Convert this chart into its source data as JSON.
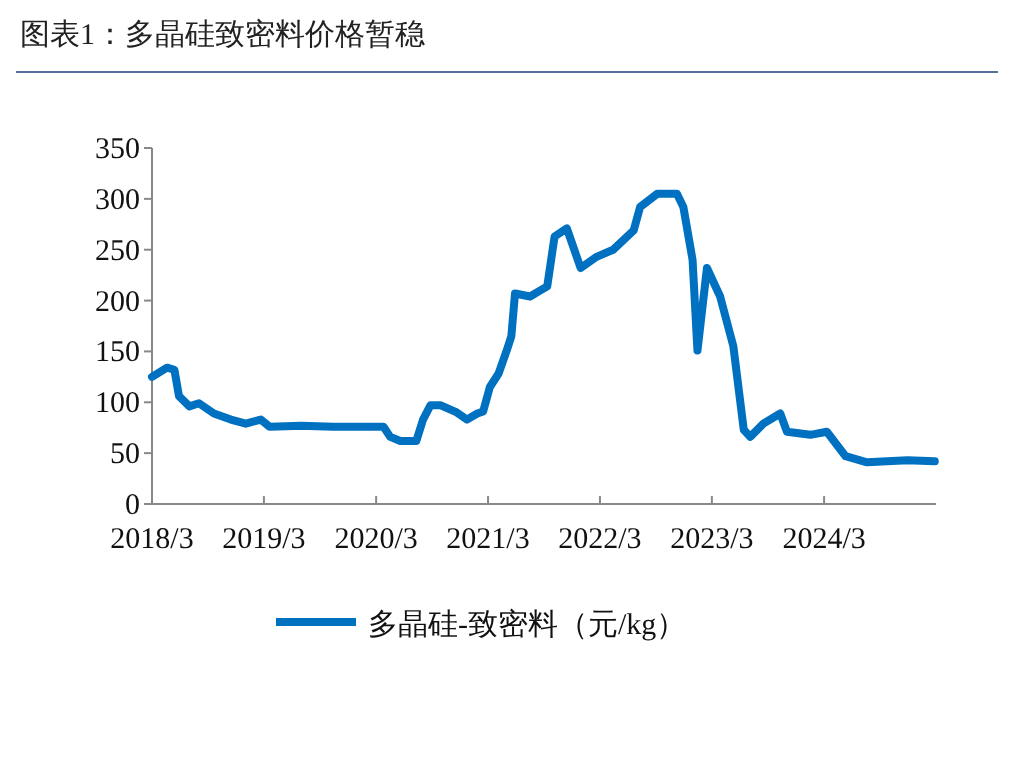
{
  "chart_data": {
    "type": "line",
    "title": "图表1：多晶硅致密料价格暂稳",
    "x": [
      "2018-03-01",
      "2018-04-19",
      "2018-05-13",
      "2018-05-28",
      "2018-07-01",
      "2018-08-01",
      "2018-09-19",
      "2018-11-13",
      "2019-01-01",
      "2019-02-19",
      "2019-03-19",
      "2019-07-01",
      "2019-10-13",
      "2020-03-25",
      "2020-04-16",
      "2020-05-19",
      "2020-07-10",
      "2020-08-01",
      "2020-08-25",
      "2020-09-28",
      "2020-11-19",
      "2020-12-22",
      "2021-01-25",
      "2021-02-13",
      "2021-03-07",
      "2021-04-04",
      "2021-05-01",
      "2021-05-16",
      "2021-05-28",
      "2021-07-16",
      "2021-09-10",
      "2021-10-04",
      "2021-11-13",
      "2021-12-28",
      "2022-02-18",
      "2022-04-13",
      "2022-06-19",
      "2022-07-10",
      "2022-09-04",
      "2022-11-07",
      "2022-11-28",
      "2022-12-28",
      "2023-01-13",
      "2023-02-13",
      "2023-03-28",
      "2023-05-10",
      "2023-06-13",
      "2023-07-04",
      "2023-08-16",
      "2023-10-10",
      "2023-11-01",
      "2024-01-16",
      "2024-03-10",
      "2024-05-10",
      "2024-07-19",
      "2024-11-28",
      "2025-02-25"
    ],
    "series": [
      {
        "name": "多晶硅-致密料（元/kg）",
        "color": "#0070c0",
        "values": [
          125,
          134,
          132,
          106,
          96,
          99,
          89,
          83,
          79,
          83,
          76,
          77,
          76,
          76,
          66,
          62,
          62,
          83,
          97,
          97,
          90,
          83,
          89,
          91,
          115,
          128,
          151,
          165,
          207,
          204,
          214,
          263,
          271,
          232,
          243,
          250,
          269,
          292,
          305,
          305,
          292,
          240,
          151,
          232,
          204,
          155,
          73,
          66,
          79,
          89,
          71,
          68,
          71,
          47,
          41,
          43,
          42
        ]
      }
    ],
    "xlim": [
      "2018-03",
      "2025-03"
    ],
    "xticks": [
      {
        "value": "2018-03",
        "label": "2018/3"
      },
      {
        "value": "2019-03",
        "label": "2019/3"
      },
      {
        "value": "2020-03",
        "label": "2020/3"
      },
      {
        "value": "2021-03",
        "label": "2021/3"
      },
      {
        "value": "2022-03",
        "label": "2022/3"
      },
      {
        "value": "2023-03",
        "label": "2023/3"
      },
      {
        "value": "2024-03",
        "label": "2024/3"
      }
    ],
    "ylim": [
      0,
      350
    ],
    "yticks": [
      0,
      50,
      100,
      150,
      200,
      250,
      300,
      350
    ],
    "grid": false,
    "legend": "bottom",
    "marker": "none",
    "line_style": "solid"
  }
}
